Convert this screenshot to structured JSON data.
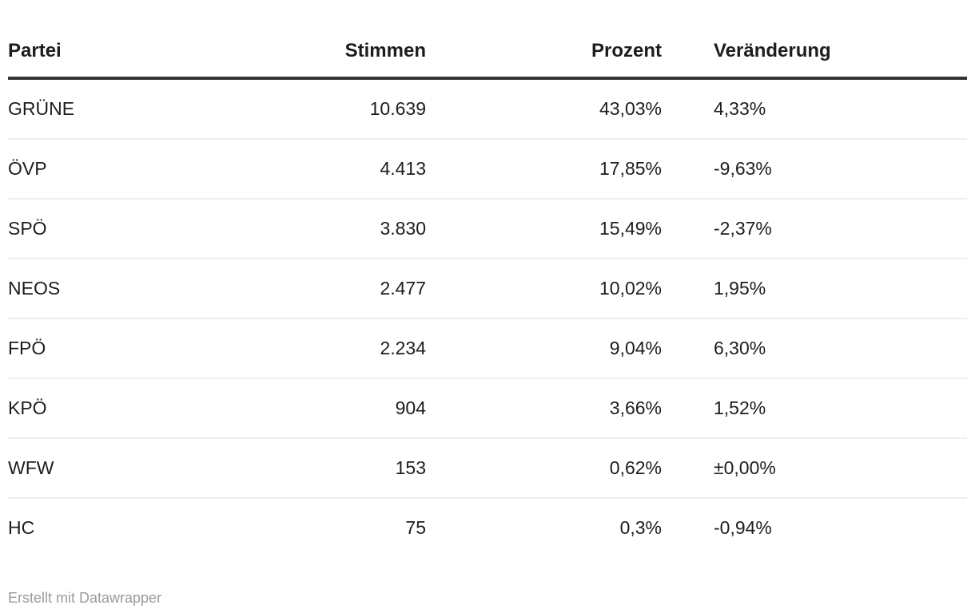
{
  "chart_data": {
    "type": "table",
    "columns": [
      "Partei",
      "Stimmen",
      "Prozent",
      "Veränderung"
    ],
    "column_align": [
      "left",
      "right",
      "right",
      "left"
    ],
    "rows": [
      [
        "GRÜNE",
        "10.639",
        "43,03%",
        "4,33%"
      ],
      [
        "ÖVP",
        "4.413",
        "17,85%",
        "-9,63%"
      ],
      [
        "SPÖ",
        "3.830",
        "15,49%",
        "-2,37%"
      ],
      [
        "NEOS",
        "2.477",
        "10,02%",
        "1,95%"
      ],
      [
        "FPÖ",
        "2.234",
        "9,04%",
        "6,30%"
      ],
      [
        "KPÖ",
        "904",
        "3,66%",
        "1,52%"
      ],
      [
        "WFW",
        "153",
        "0,62%",
        "±0,00%"
      ],
      [
        "HC",
        "75",
        "0,3%",
        "-0,94%"
      ]
    ],
    "numeric": {
      "stimmen": [
        10639,
        4413,
        3830,
        2477,
        2234,
        904,
        153,
        75
      ],
      "prozent": [
        43.03,
        17.85,
        15.49,
        10.02,
        9.04,
        3.66,
        0.62,
        0.3
      ],
      "veraenderung": [
        4.33,
        -9.63,
        -2.37,
        1.95,
        6.3,
        1.52,
        0.0,
        -0.94
      ]
    }
  },
  "footer": {
    "attribution": "Erstellt mit Datawrapper"
  },
  "colors": {
    "text": "#1d1d1d",
    "header_rule": "#333333",
    "row_divider": "#eeeeee",
    "attribution_text": "#9b9b9b",
    "background": "#ffffff"
  }
}
